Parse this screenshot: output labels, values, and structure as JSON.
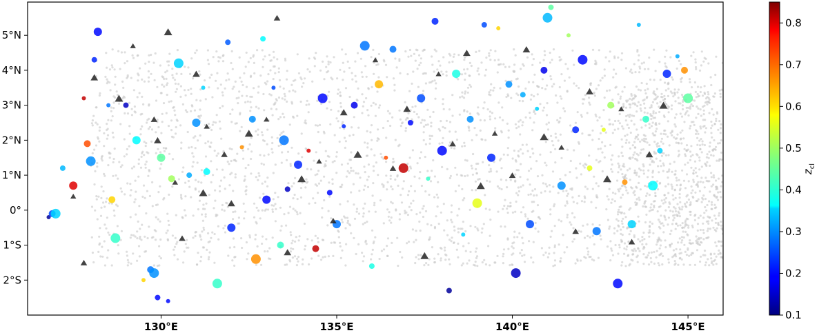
{
  "chart_data": {
    "type": "scatter",
    "title": "",
    "xlabel": "",
    "ylabel": "",
    "xlim": [
      126.2,
      146.0
    ],
    "ylim": [
      -3.0,
      5.95
    ],
    "x_ticks": [
      130,
      135,
      140,
      145
    ],
    "x_tick_labels": [
      "130°E",
      "135°E",
      "140°E",
      "145°E"
    ],
    "y_ticks": [
      -2,
      -1,
      0,
      1,
      2,
      3,
      4,
      5
    ],
    "y_tick_labels": [
      "2°S",
      "1°S",
      "0°",
      "1°N",
      "2°N",
      "3°N",
      "4°N",
      "5°N"
    ],
    "grid": false,
    "colorbar": {
      "label": "z_cl",
      "label_main": "z",
      "label_sub": "cl",
      "colormap": "jet",
      "range": [
        0.1,
        0.85
      ],
      "ticks": [
        0.1,
        0.2,
        0.3,
        0.4,
        0.5,
        0.6,
        0.7,
        0.8
      ],
      "tick_labels": [
        "0.1",
        "0.2",
        "0.3",
        "0.4",
        "0.5",
        "0.6",
        "0.7",
        "0.8"
      ]
    },
    "background_points": {
      "description_color": "#c8c8c8",
      "region_main": {
        "x": [
          128.0,
          146.0
        ],
        "y": [
          -1.6,
          4.6
        ]
      },
      "region_east": {
        "x": [
          143.0,
          146.0
        ],
        "y": [
          -1.6,
          3.4
        ]
      }
    },
    "series": [
      {
        "marker": "circle",
        "points": [
          {
            "x": 126.8,
            "y": -0.2,
            "z": 0.12
          },
          {
            "x": 126.9,
            "y": -0.1,
            "z": 0.25
          },
          {
            "x": 127.0,
            "y": -0.1,
            "z": 0.35
          },
          {
            "x": 127.2,
            "y": 1.2,
            "z": 0.33
          },
          {
            "x": 127.5,
            "y": 0.7,
            "z": 0.78
          },
          {
            "x": 127.8,
            "y": 3.2,
            "z": 0.8
          },
          {
            "x": 127.9,
            "y": 1.9,
            "z": 0.7
          },
          {
            "x": 128.0,
            "y": 1.4,
            "z": 0.3
          },
          {
            "x": 128.1,
            "y": 4.3,
            "z": 0.22
          },
          {
            "x": 128.2,
            "y": 5.1,
            "z": 0.2
          },
          {
            "x": 128.5,
            "y": 3.0,
            "z": 0.28
          },
          {
            "x": 128.6,
            "y": 0.3,
            "z": 0.6
          },
          {
            "x": 128.7,
            "y": -0.8,
            "z": 0.42
          },
          {
            "x": 129.0,
            "y": 3.0,
            "z": 0.15
          },
          {
            "x": 129.3,
            "y": 2.0,
            "z": 0.38
          },
          {
            "x": 129.5,
            "y": -2.0,
            "z": 0.6
          },
          {
            "x": 129.7,
            "y": -1.7,
            "z": 0.28
          },
          {
            "x": 129.8,
            "y": -1.8,
            "z": 0.3
          },
          {
            "x": 129.9,
            "y": -2.5,
            "z": 0.2
          },
          {
            "x": 130.0,
            "y": 1.5,
            "z": 0.45
          },
          {
            "x": 130.2,
            "y": -2.6,
            "z": 0.2
          },
          {
            "x": 130.3,
            "y": 0.9,
            "z": 0.5
          },
          {
            "x": 130.5,
            "y": 4.2,
            "z": 0.35
          },
          {
            "x": 130.8,
            "y": 1.0,
            "z": 0.32
          },
          {
            "x": 131.0,
            "y": 2.5,
            "z": 0.3
          },
          {
            "x": 131.2,
            "y": 3.5,
            "z": 0.35
          },
          {
            "x": 131.3,
            "y": 1.1,
            "z": 0.38
          },
          {
            "x": 131.6,
            "y": -2.1,
            "z": 0.42
          },
          {
            "x": 131.9,
            "y": 4.8,
            "z": 0.26
          },
          {
            "x": 132.0,
            "y": -0.5,
            "z": 0.22
          },
          {
            "x": 132.3,
            "y": 1.8,
            "z": 0.65
          },
          {
            "x": 132.6,
            "y": 2.6,
            "z": 0.3
          },
          {
            "x": 132.7,
            "y": -1.4,
            "z": 0.65
          },
          {
            "x": 132.9,
            "y": 4.9,
            "z": 0.38
          },
          {
            "x": 133.0,
            "y": 0.3,
            "z": 0.2
          },
          {
            "x": 133.2,
            "y": 3.5,
            "z": 0.25
          },
          {
            "x": 133.4,
            "y": -1.0,
            "z": 0.42
          },
          {
            "x": 133.5,
            "y": 2.0,
            "z": 0.28
          },
          {
            "x": 133.6,
            "y": 0.6,
            "z": 0.15
          },
          {
            "x": 133.9,
            "y": 1.3,
            "z": 0.22
          },
          {
            "x": 134.2,
            "y": 1.7,
            "z": 0.78
          },
          {
            "x": 134.4,
            "y": -1.1,
            "z": 0.8
          },
          {
            "x": 134.6,
            "y": 3.2,
            "z": 0.2
          },
          {
            "x": 134.8,
            "y": 0.5,
            "z": 0.2
          },
          {
            "x": 135.0,
            "y": -0.4,
            "z": 0.28
          },
          {
            "x": 135.2,
            "y": 2.4,
            "z": 0.22
          },
          {
            "x": 135.5,
            "y": 3.0,
            "z": 0.18
          },
          {
            "x": 135.8,
            "y": 4.7,
            "z": 0.28
          },
          {
            "x": 136.0,
            "y": -1.6,
            "z": 0.4
          },
          {
            "x": 136.2,
            "y": 3.6,
            "z": 0.62
          },
          {
            "x": 136.4,
            "y": 1.5,
            "z": 0.7
          },
          {
            "x": 136.6,
            "y": 4.6,
            "z": 0.28
          },
          {
            "x": 136.9,
            "y": 1.2,
            "z": 0.8
          },
          {
            "x": 137.1,
            "y": 2.5,
            "z": 0.2
          },
          {
            "x": 137.4,
            "y": 3.2,
            "z": 0.25
          },
          {
            "x": 137.6,
            "y": 0.9,
            "z": 0.42
          },
          {
            "x": 137.8,
            "y": 5.4,
            "z": 0.22
          },
          {
            "x": 138.0,
            "y": 1.7,
            "z": 0.2
          },
          {
            "x": 138.2,
            "y": -2.3,
            "z": 0.12
          },
          {
            "x": 138.4,
            "y": 3.9,
            "z": 0.4
          },
          {
            "x": 138.6,
            "y": -0.7,
            "z": 0.35
          },
          {
            "x": 138.8,
            "y": 2.6,
            "z": 0.3
          },
          {
            "x": 139.0,
            "y": 0.2,
            "z": 0.55
          },
          {
            "x": 139.2,
            "y": 5.3,
            "z": 0.25
          },
          {
            "x": 139.4,
            "y": 1.5,
            "z": 0.22
          },
          {
            "x": 139.6,
            "y": 5.2,
            "z": 0.6
          },
          {
            "x": 139.9,
            "y": 3.6,
            "z": 0.3
          },
          {
            "x": 140.1,
            "y": -1.8,
            "z": 0.15
          },
          {
            "x": 140.3,
            "y": 3.3,
            "z": 0.32
          },
          {
            "x": 140.5,
            "y": -0.4,
            "z": 0.25
          },
          {
            "x": 140.7,
            "y": 2.9,
            "z": 0.35
          },
          {
            "x": 140.9,
            "y": 4.0,
            "z": 0.18
          },
          {
            "x": 141.0,
            "y": 5.5,
            "z": 0.33
          },
          {
            "x": 141.1,
            "y": 5.8,
            "z": 0.45
          },
          {
            "x": 141.4,
            "y": 0.7,
            "z": 0.3
          },
          {
            "x": 141.6,
            "y": 5.0,
            "z": 0.5
          },
          {
            "x": 141.8,
            "y": 2.3,
            "z": 0.22
          },
          {
            "x": 142.0,
            "y": 4.3,
            "z": 0.2
          },
          {
            "x": 142.2,
            "y": 1.2,
            "z": 0.55
          },
          {
            "x": 142.4,
            "y": -0.6,
            "z": 0.28
          },
          {
            "x": 142.6,
            "y": 2.3,
            "z": 0.55
          },
          {
            "x": 142.8,
            "y": 3.0,
            "z": 0.5
          },
          {
            "x": 143.0,
            "y": -2.1,
            "z": 0.2
          },
          {
            "x": 143.2,
            "y": 0.8,
            "z": 0.65
          },
          {
            "x": 143.4,
            "y": -0.4,
            "z": 0.35
          },
          {
            "x": 143.6,
            "y": 5.3,
            "z": 0.33
          },
          {
            "x": 143.8,
            "y": 2.6,
            "z": 0.42
          },
          {
            "x": 144.0,
            "y": 0.7,
            "z": 0.38
          },
          {
            "x": 144.2,
            "y": 1.7,
            "z": 0.35
          },
          {
            "x": 144.4,
            "y": 3.9,
            "z": 0.22
          },
          {
            "x": 144.7,
            "y": 4.4,
            "z": 0.32
          },
          {
            "x": 144.9,
            "y": 4.0,
            "z": 0.65
          },
          {
            "x": 145.0,
            "y": 3.2,
            "z": 0.45
          }
        ]
      },
      {
        "marker": "triangle",
        "color": "#222222",
        "points": [
          {
            "x": 127.5,
            "y": 0.4
          },
          {
            "x": 127.8,
            "y": -1.5
          },
          {
            "x": 128.1,
            "y": 3.8
          },
          {
            "x": 128.8,
            "y": 3.2
          },
          {
            "x": 129.2,
            "y": 4.7
          },
          {
            "x": 129.8,
            "y": 2.6
          },
          {
            "x": 129.9,
            "y": 2.0
          },
          {
            "x": 130.2,
            "y": 5.1
          },
          {
            "x": 130.4,
            "y": 0.8
          },
          {
            "x": 130.6,
            "y": -0.8
          },
          {
            "x": 131.0,
            "y": 3.9
          },
          {
            "x": 131.2,
            "y": 0.5
          },
          {
            "x": 131.3,
            "y": 2.4
          },
          {
            "x": 131.8,
            "y": 1.6
          },
          {
            "x": 132.0,
            "y": 0.2
          },
          {
            "x": 132.5,
            "y": 2.2
          },
          {
            "x": 133.0,
            "y": 2.6
          },
          {
            "x": 133.3,
            "y": 5.5
          },
          {
            "x": 133.6,
            "y": -1.2
          },
          {
            "x": 134.0,
            "y": 0.9
          },
          {
            "x": 134.5,
            "y": 1.4
          },
          {
            "x": 134.9,
            "y": -0.3
          },
          {
            "x": 135.2,
            "y": 2.8
          },
          {
            "x": 135.6,
            "y": 1.6
          },
          {
            "x": 136.1,
            "y": 4.3
          },
          {
            "x": 136.6,
            "y": 1.2
          },
          {
            "x": 137.0,
            "y": 2.9
          },
          {
            "x": 137.5,
            "y": -1.3
          },
          {
            "x": 137.9,
            "y": 3.9
          },
          {
            "x": 138.3,
            "y": 1.9
          },
          {
            "x": 138.7,
            "y": 4.5
          },
          {
            "x": 139.1,
            "y": 0.7
          },
          {
            "x": 139.5,
            "y": 2.2
          },
          {
            "x": 140.0,
            "y": 1.0
          },
          {
            "x": 140.4,
            "y": 4.6
          },
          {
            "x": 140.9,
            "y": 2.1
          },
          {
            "x": 141.4,
            "y": 1.8
          },
          {
            "x": 141.8,
            "y": -0.6
          },
          {
            "x": 142.2,
            "y": 3.4
          },
          {
            "x": 142.7,
            "y": 0.9
          },
          {
            "x": 143.1,
            "y": 2.9
          },
          {
            "x": 143.4,
            "y": -0.9
          },
          {
            "x": 143.9,
            "y": 1.6
          },
          {
            "x": 144.3,
            "y": 3.0
          }
        ]
      }
    ]
  }
}
